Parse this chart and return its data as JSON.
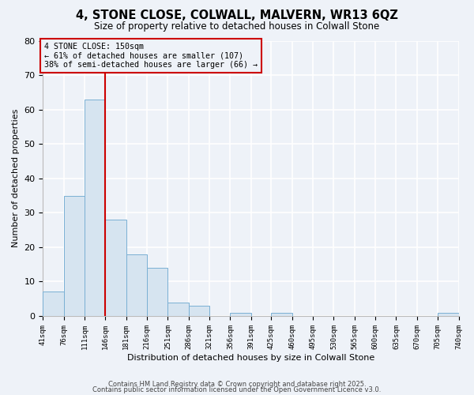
{
  "title": "4, STONE CLOSE, COLWALL, MALVERN, WR13 6QZ",
  "subtitle": "Size of property relative to detached houses in Colwall Stone",
  "xlabel": "Distribution of detached houses by size in Colwall Stone",
  "ylabel": "Number of detached properties",
  "bar_color": "#d6e4f0",
  "bar_edge_color": "#7ab0d4",
  "background_color": "#eef2f8",
  "plot_bg_color": "#eef2f8",
  "grid_color": "#ffffff",
  "annotation_box_color": "#cc0000",
  "annotation_text": "4 STONE CLOSE: 150sqm\n← 61% of detached houses are smaller (107)\n38% of semi-detached houses are larger (66) →",
  "property_line_x": 146,
  "ylim": [
    0,
    80
  ],
  "yticks": [
    0,
    10,
    20,
    30,
    40,
    50,
    60,
    70,
    80
  ],
  "bins": [
    41,
    76,
    111,
    146,
    181,
    216,
    251,
    286,
    321,
    356,
    391,
    425,
    460,
    495,
    530,
    565,
    600,
    635,
    670,
    705,
    740
  ],
  "bin_labels": [
    "41sqm",
    "76sqm",
    "111sqm",
    "146sqm",
    "181sqm",
    "216sqm",
    "251sqm",
    "286sqm",
    "321sqm",
    "356sqm",
    "391sqm",
    "425sqm",
    "460sqm",
    "495sqm",
    "530sqm",
    "565sqm",
    "600sqm",
    "635sqm",
    "670sqm",
    "705sqm",
    "740sqm"
  ],
  "counts": [
    7,
    35,
    63,
    28,
    18,
    14,
    4,
    3,
    0,
    1,
    0,
    1,
    0,
    0,
    0,
    0,
    0,
    0,
    0,
    1,
    0
  ],
  "footer1": "Contains HM Land Registry data © Crown copyright and database right 2025.",
  "footer2": "Contains public sector information licensed under the Open Government Licence v3.0."
}
